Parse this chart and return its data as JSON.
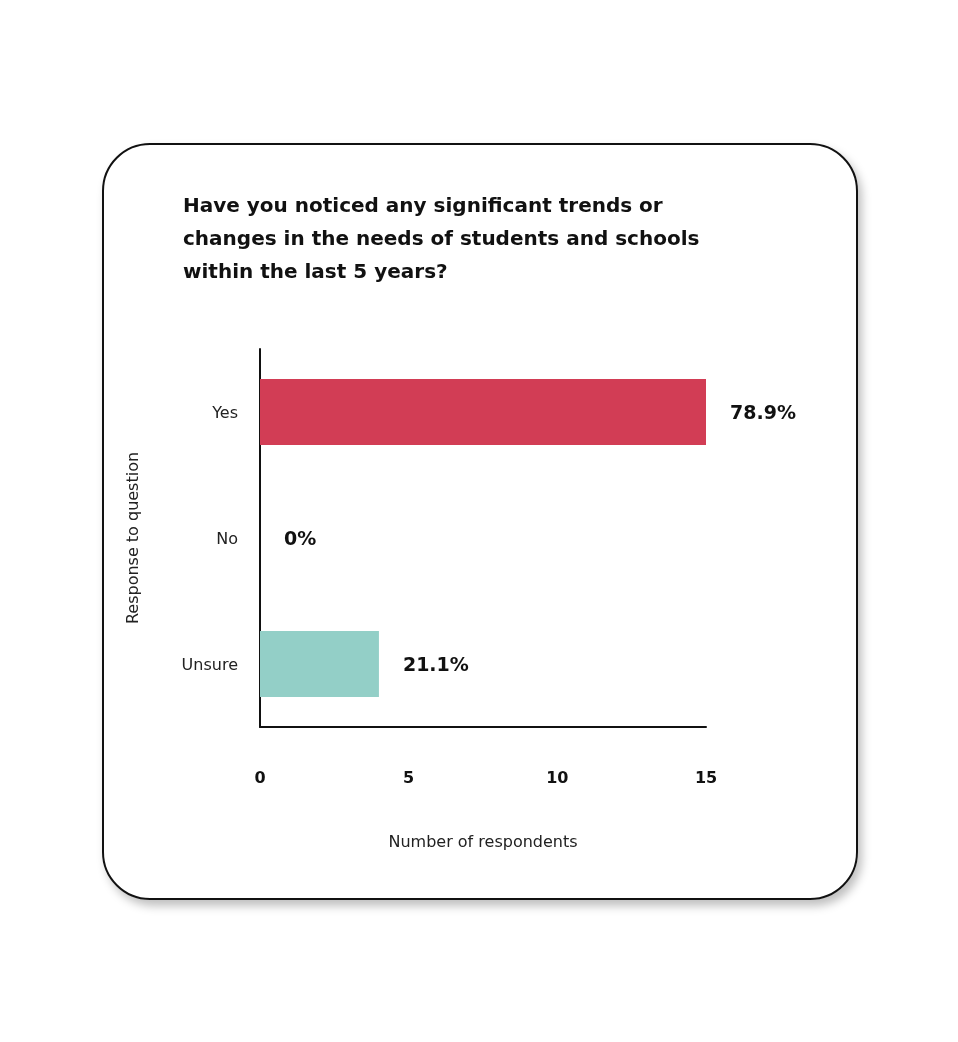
{
  "chart_data": {
    "type": "bar",
    "orientation": "horizontal",
    "title": "Have you noticed any significant trends or changes in the needs of students and schools within the last 5 years?",
    "categories": [
      "Yes",
      "No",
      "Unsure"
    ],
    "values": [
      15,
      0,
      4
    ],
    "colors": [
      "#d23d55",
      "#7f7f7f",
      "#93cfc7"
    ],
    "annotations": [
      {
        "text": "78.9%",
        "x": 15,
        "y": "Yes"
      },
      {
        "text": "0%",
        "x": 0,
        "y": "No"
      },
      {
        "text": "21.1%",
        "x": 4,
        "y": "Unsure"
      }
    ],
    "xlabel": "Number of respondents",
    "ylabel": "Response to question",
    "xlim": [
      0,
      15
    ],
    "xticks": [
      0,
      5,
      10,
      15
    ],
    "grid": false
  }
}
